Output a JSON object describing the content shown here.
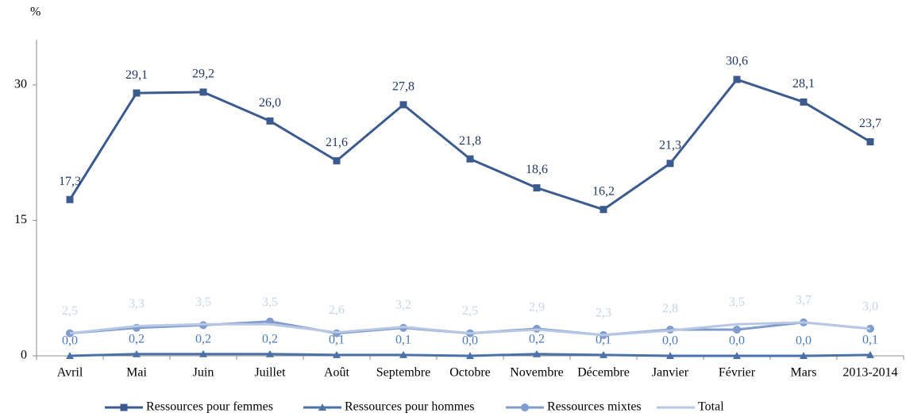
{
  "chart_data": {
    "type": "line",
    "y_label": "%",
    "categories": [
      "Avril",
      "Mai",
      "Juin",
      "Juillet",
      "Août",
      "Septembre",
      "Octobre",
      "Novembre",
      "Décembre",
      "Janvier",
      "Février",
      "Mars",
      "2013-2014"
    ],
    "ylim": [
      0,
      35
    ],
    "yticks": [
      0,
      15,
      30
    ],
    "legend": "bottom",
    "series": [
      {
        "name": "Ressources pour femmes",
        "color": "#3b5b8e",
        "label_color": "#1f3864",
        "marker": "square",
        "values": [
          17.3,
          29.1,
          29.2,
          26.0,
          21.6,
          27.8,
          21.8,
          18.6,
          16.2,
          21.3,
          30.6,
          28.1,
          23.7
        ],
        "value_labels": [
          "17,3",
          "29,1",
          "29,2",
          "26,0",
          "21,6",
          "27,8",
          "21,8",
          "18,6",
          "16,2",
          "21,3",
          "30,6",
          "28,1",
          "23,7"
        ]
      },
      {
        "name": "Ressources pour hommes",
        "color": "#4a72a8",
        "label_color": "#4a7ab8",
        "marker": "triangle",
        "values": [
          0.0,
          0.2,
          0.2,
          0.2,
          0.1,
          0.1,
          0.0,
          0.2,
          0.1,
          0.0,
          0.0,
          0.0,
          0.1
        ],
        "value_labels": [
          "0,0",
          "0,2",
          "0,2",
          "0,2",
          "0,1",
          "0,1",
          "0,0",
          "0,2",
          "0,1",
          "0,0",
          "0,0",
          "0,0",
          "0,1"
        ]
      },
      {
        "name": "Ressources mixtes",
        "color": "#7f9ccc",
        "marker": "circle",
        "values": [
          2.5,
          3.1,
          3.4,
          3.8,
          2.5,
          3.1,
          2.5,
          3.0,
          2.3,
          2.9,
          2.9,
          3.7,
          3.0
        ]
      },
      {
        "name": "Total",
        "color": "#b8c8e4",
        "label_color": "#c5d3ea",
        "marker": "none",
        "values": [
          2.5,
          3.3,
          3.5,
          3.5,
          2.6,
          3.2,
          2.5,
          2.9,
          2.3,
          2.8,
          3.5,
          3.7,
          3.0
        ],
        "value_labels": [
          "2,5",
          "3,3",
          "3,5",
          "3,5",
          "2,6",
          "3,2",
          "2,5",
          "2,9",
          "2,3",
          "2,8",
          "3,5",
          "3,7",
          "3,0"
        ]
      }
    ]
  }
}
